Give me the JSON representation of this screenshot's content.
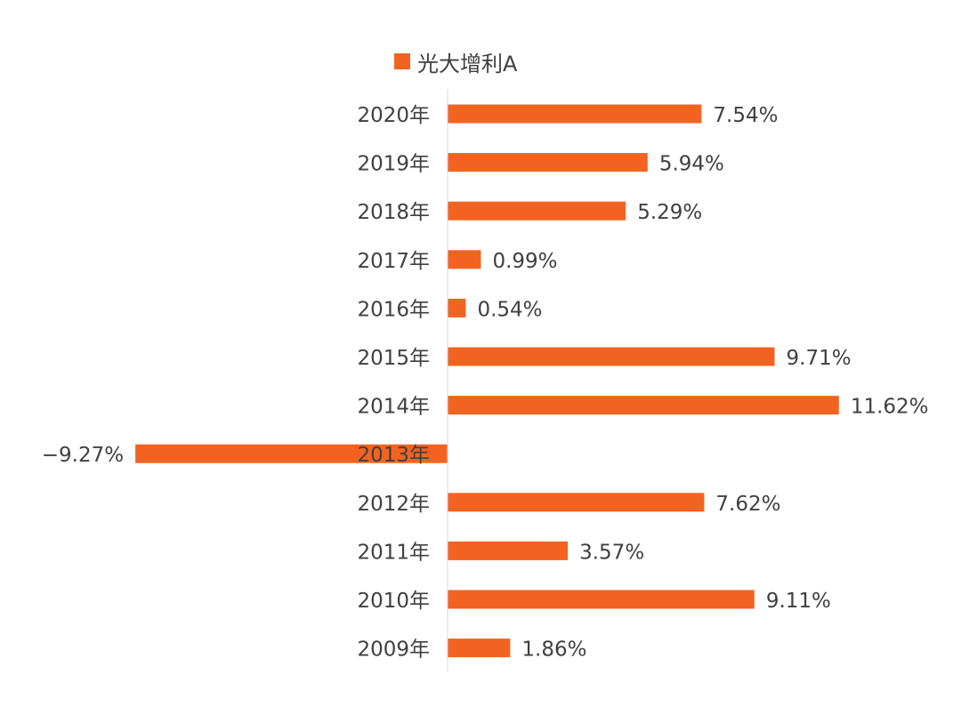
{
  "chart_data": {
    "type": "bar",
    "orientation": "horizontal",
    "categories": [
      "2020年",
      "2019年",
      "2018年",
      "2017年",
      "2016年",
      "2015年",
      "2014年",
      "2013年",
      "2012年",
      "2011年",
      "2010年",
      "2009年"
    ],
    "series": [
      {
        "name": "光大增利A",
        "values": [
          7.54,
          5.94,
          5.29,
          0.99,
          0.54,
          9.71,
          11.62,
          -9.27,
          7.62,
          3.57,
          9.11,
          1.86
        ],
        "color": "#f26322"
      }
    ],
    "data_labels": [
      "7.54%",
      "5.94%",
      "5.29%",
      "0.99%",
      "0.54%",
      "9.71%",
      "11.62%",
      "−9.27%",
      "7.62%",
      "3.57%",
      "9.11%",
      "1.86%"
    ],
    "xlim": [
      -9.27,
      11.62
    ],
    "grid": false,
    "legend": "top-center",
    "axis_color": "#d9d9d9",
    "text_color": "#404040"
  }
}
